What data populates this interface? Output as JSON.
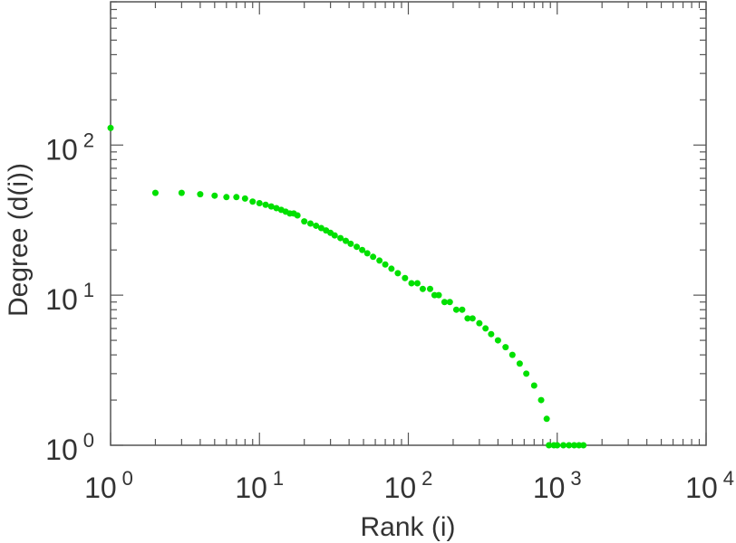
{
  "chart_data": {
    "type": "scatter",
    "xlabel": "Rank (i)",
    "ylabel": "Degree (d(i))",
    "xscale": "log",
    "yscale": "log",
    "xlim": [
      1,
      10000
    ],
    "ylim": [
      1,
      900
    ],
    "grid": false,
    "legend": "none",
    "marker_color": "#00e000",
    "x_ticks": [
      {
        "value": 1,
        "base": "10",
        "exp": "0"
      },
      {
        "value": 10,
        "base": "10",
        "exp": "1"
      },
      {
        "value": 100,
        "base": "10",
        "exp": "2"
      },
      {
        "value": 1000,
        "base": "10",
        "exp": "3"
      },
      {
        "value": 10000,
        "base": "10",
        "exp": "4"
      }
    ],
    "y_ticks": [
      {
        "value": 1,
        "base": "10",
        "exp": "0"
      },
      {
        "value": 10,
        "base": "10",
        "exp": "1"
      },
      {
        "value": 100,
        "base": "10",
        "exp": "2"
      }
    ],
    "points": [
      [
        1,
        130
      ],
      [
        2,
        48
      ],
      [
        3,
        48
      ],
      [
        4,
        47
      ],
      [
        5,
        46
      ],
      [
        6,
        45
      ],
      [
        7,
        45
      ],
      [
        8,
        44
      ],
      [
        9,
        42
      ],
      [
        10,
        41
      ],
      [
        11,
        40
      ],
      [
        12,
        39
      ],
      [
        13,
        38
      ],
      [
        14,
        37
      ],
      [
        15,
        36
      ],
      [
        16,
        35
      ],
      [
        17,
        35
      ],
      [
        18,
        34
      ],
      [
        20,
        31
      ],
      [
        22,
        30
      ],
      [
        24,
        29
      ],
      [
        26,
        28
      ],
      [
        28,
        27
      ],
      [
        30,
        26
      ],
      [
        32,
        25
      ],
      [
        35,
        24
      ],
      [
        38,
        23
      ],
      [
        41,
        22
      ],
      [
        45,
        21
      ],
      [
        49,
        20
      ],
      [
        53,
        19
      ],
      [
        58,
        18
      ],
      [
        64,
        17
      ],
      [
        70,
        16
      ],
      [
        77,
        15
      ],
      [
        85,
        14
      ],
      [
        95,
        13
      ],
      [
        105,
        12
      ],
      [
        115,
        12
      ],
      [
        125,
        11
      ],
      [
        140,
        11
      ],
      [
        150,
        10
      ],
      [
        160,
        10
      ],
      [
        175,
        9
      ],
      [
        190,
        9
      ],
      [
        210,
        8
      ],
      [
        230,
        8
      ],
      [
        250,
        7
      ],
      [
        270,
        7
      ],
      [
        300,
        6.5
      ],
      [
        330,
        6
      ],
      [
        360,
        5.5
      ],
      [
        400,
        5
      ],
      [
        450,
        4.5
      ],
      [
        500,
        4
      ],
      [
        560,
        3.5
      ],
      [
        620,
        3
      ],
      [
        700,
        2.5
      ],
      [
        780,
        2
      ],
      [
        850,
        1.5
      ],
      [
        880,
        1
      ],
      [
        950,
        1
      ],
      [
        1000,
        1
      ],
      [
        1100,
        1
      ],
      [
        1200,
        1
      ],
      [
        1300,
        1
      ],
      [
        1400,
        1
      ],
      [
        1500,
        1
      ]
    ]
  }
}
